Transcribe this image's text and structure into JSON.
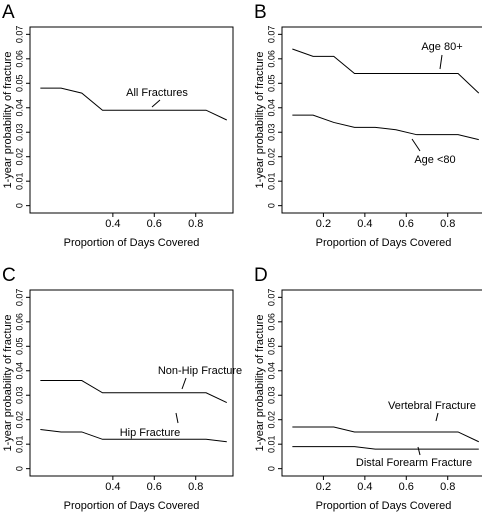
{
  "chart_data": [
    {
      "type": "line",
      "panel_label": "A",
      "x_label": "Proportion of Days Covered",
      "y_label": "1-year probability of fracture",
      "x": [
        0.05,
        0.15,
        0.25,
        0.35,
        0.45,
        0.55,
        0.65,
        0.75,
        0.85,
        0.95
      ],
      "series": [
        {
          "name": "All Fractures",
          "color": "#000000",
          "values": [
            0.048,
            0.048,
            0.046,
            0.039,
            0.039,
            0.039,
            0.039,
            0.039,
            0.039,
            0.035
          ]
        }
      ],
      "xlim": [
        0.0,
        0.98
      ],
      "xticks": [
        0.4,
        0.6,
        0.8
      ],
      "ylim": [
        -0.003,
        0.073
      ],
      "yticks": [
        0,
        0.01,
        0.02,
        0.03,
        0.04,
        0.05,
        0.06,
        0.07
      ]
    },
    {
      "type": "line",
      "panel_label": "B",
      "x_label": "Proportion of Days Covered",
      "y_label": "1-year probability of fracture",
      "x": [
        0.05,
        0.15,
        0.25,
        0.35,
        0.45,
        0.55,
        0.65,
        0.75,
        0.85,
        0.95
      ],
      "series": [
        {
          "name": "Age 80+",
          "color": "#000000",
          "values": [
            0.064,
            0.061,
            0.061,
            0.054,
            0.054,
            0.054,
            0.054,
            0.054,
            0.054,
            0.046
          ]
        },
        {
          "name": "Age <80",
          "color": "#000000",
          "values": [
            0.037,
            0.037,
            0.034,
            0.032,
            0.032,
            0.031,
            0.029,
            0.029,
            0.029,
            0.027
          ]
        }
      ],
      "xlim": [
        0.0,
        0.98
      ],
      "xticks": [
        0.2,
        0.4,
        0.6,
        0.8
      ],
      "ylim": [
        -0.003,
        0.073
      ],
      "yticks": [
        0,
        0.01,
        0.02,
        0.03,
        0.04,
        0.05,
        0.06,
        0.07
      ]
    },
    {
      "type": "line",
      "panel_label": "C",
      "x_label": "Proportion of Days Covered",
      "y_label": "1-year probability of fracture",
      "x": [
        0.05,
        0.15,
        0.25,
        0.35,
        0.45,
        0.55,
        0.65,
        0.75,
        0.85,
        0.95
      ],
      "series": [
        {
          "name": "Non-Hip Fracture",
          "color": "#000000",
          "values": [
            0.036,
            0.036,
            0.036,
            0.031,
            0.031,
            0.031,
            0.031,
            0.031,
            0.031,
            0.027
          ]
        },
        {
          "name": "Hip Fracture",
          "color": "#000000",
          "values": [
            0.016,
            0.015,
            0.015,
            0.012,
            0.012,
            0.012,
            0.012,
            0.012,
            0.012,
            0.011
          ]
        }
      ],
      "xlim": [
        0.0,
        0.98
      ],
      "xticks": [
        0.4,
        0.6,
        0.8
      ],
      "ylim": [
        -0.003,
        0.073
      ],
      "yticks": [
        0,
        0.01,
        0.02,
        0.03,
        0.04,
        0.05,
        0.06,
        0.07
      ]
    },
    {
      "type": "line",
      "panel_label": "D",
      "x_label": "Proportion of Days Covered",
      "y_label": "1-year probability of fracture",
      "x": [
        0.05,
        0.15,
        0.25,
        0.35,
        0.45,
        0.55,
        0.65,
        0.75,
        0.85,
        0.95
      ],
      "series": [
        {
          "name": "Vertebral Fracture",
          "color": "#000000",
          "values": [
            0.017,
            0.017,
            0.017,
            0.015,
            0.015,
            0.015,
            0.015,
            0.015,
            0.015,
            0.011
          ]
        },
        {
          "name": "Distal Forearm Fracture",
          "color": "#000000",
          "values": [
            0.009,
            0.009,
            0.009,
            0.009,
            0.008,
            0.008,
            0.008,
            0.008,
            0.008,
            0.008
          ]
        }
      ],
      "xlim": [
        0.0,
        0.98
      ],
      "xticks": [
        0.2,
        0.4,
        0.6,
        0.8
      ],
      "ylim": [
        -0.003,
        0.073
      ],
      "yticks": [
        0,
        0.01,
        0.02,
        0.03,
        0.04,
        0.05,
        0.06,
        0.07
      ]
    }
  ]
}
